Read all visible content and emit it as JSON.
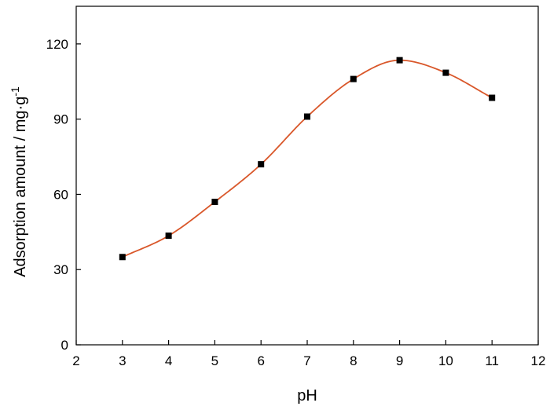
{
  "chart_data": {
    "type": "scatter",
    "title": "",
    "xlabel": "pH",
    "ylabel_main": "Adsorption amount / mg·g",
    "ylabel_sup": "-1",
    "xlim": [
      2,
      12
    ],
    "ylim": [
      0,
      135
    ],
    "xticks": [
      "2",
      "3",
      "4",
      "5",
      "6",
      "7",
      "8",
      "9",
      "10",
      "11",
      "12"
    ],
    "yticks": [
      "0",
      "30",
      "60",
      "90",
      "120"
    ],
    "grid": false,
    "legend": "none",
    "colors": {
      "points": "#000000",
      "fit_line": "#d9572a",
      "axes": "#000000"
    },
    "series": [
      {
        "marker": "square",
        "x": [
          3,
          4,
          5,
          6,
          7,
          8,
          9,
          10,
          11
        ],
        "y": [
          35,
          43.5,
          57,
          72,
          91,
          106,
          113.5,
          108.5,
          98.5
        ]
      }
    ],
    "fit_line": {
      "type": "smooth-curve"
    }
  }
}
